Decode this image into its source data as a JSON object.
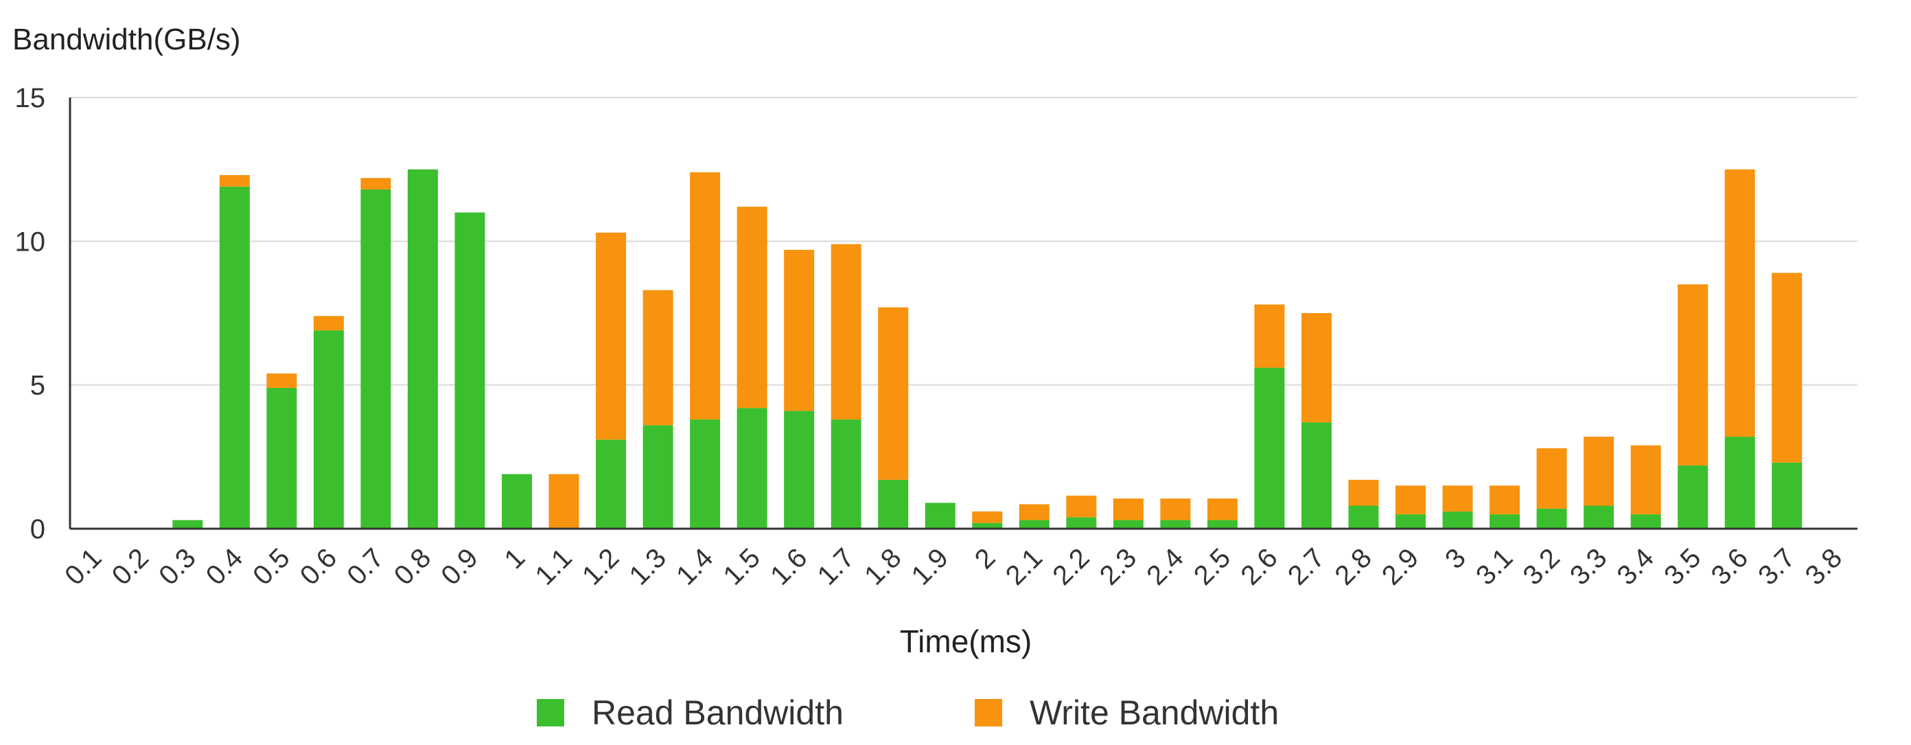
{
  "chart_data": {
    "type": "bar",
    "stacked": true,
    "ylabel": "Bandwidth(GB/s)",
    "xlabel": "Time(ms)",
    "ylim": [
      0,
      15
    ],
    "yticks": [
      0,
      5,
      10,
      15
    ],
    "grid": true,
    "legend_position": "bottom-center",
    "categories": [
      "0.1",
      "0.2",
      "0.3",
      "0.4",
      "0.5",
      "0.6",
      "0.7",
      "0.8",
      "0.9",
      "1",
      "1.1",
      "1.2",
      "1.3",
      "1.4",
      "1.5",
      "1.6",
      "1.7",
      "1.8",
      "1.9",
      "2",
      "2.1",
      "2.2",
      "2.3",
      "2.4",
      "2.5",
      "2.6",
      "2.7",
      "2.8",
      "2.9",
      "3",
      "3.1",
      "3.2",
      "3.3",
      "3.4",
      "3.5",
      "3.6",
      "3.7",
      "3.8"
    ],
    "series": [
      {
        "name": "Read Bandwidth",
        "color": "#3cbf2f",
        "values": [
          0,
          0,
          0.3,
          11.9,
          4.9,
          6.9,
          11.8,
          12.5,
          11.0,
          1.9,
          0,
          3.1,
          3.6,
          3.8,
          4.2,
          4.1,
          3.8,
          1.7,
          0.9,
          0.2,
          0.3,
          0.4,
          0.3,
          0.3,
          0.3,
          5.6,
          3.7,
          0.8,
          0.5,
          0.6,
          0.5,
          0.7,
          0.8,
          0.5,
          2.2,
          3.2,
          2.3,
          0
        ]
      },
      {
        "name": "Write Bandwidth",
        "color": "#f7930f",
        "values": [
          0,
          0,
          0,
          0.4,
          0.5,
          0.5,
          0.4,
          0,
          0,
          0,
          1.9,
          7.2,
          4.7,
          8.6,
          7.0,
          5.6,
          6.1,
          6.0,
          0,
          0.4,
          0.55,
          0.75,
          0.75,
          0.75,
          0.75,
          2.2,
          3.8,
          0.9,
          1.0,
          0.9,
          1.0,
          2.1,
          2.4,
          2.4,
          6.3,
          9.3,
          6.6,
          0
        ]
      }
    ]
  }
}
